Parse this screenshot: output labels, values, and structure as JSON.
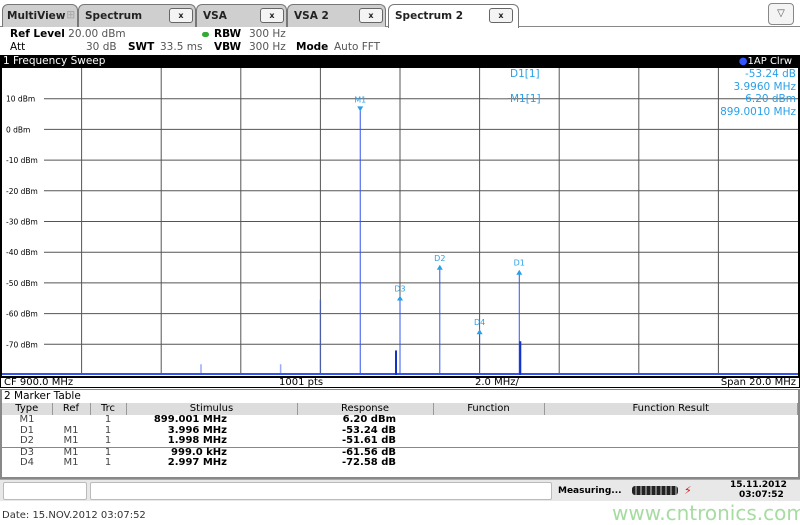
{
  "tabs": [
    {
      "label": "MultiView"
    },
    {
      "label": "Spectrum",
      "close": "x"
    },
    {
      "label": "VSA",
      "close": "x"
    },
    {
      "label": "VSA 2",
      "close": "x"
    },
    {
      "label": "Spectrum 2",
      "close": "x",
      "active": true
    }
  ],
  "dropdown_icon": "▽",
  "settings": {
    "ref_level_label": "Ref Level",
    "ref_level": "20.00 dBm",
    "att_label": "Att",
    "att": "30 dB",
    "swt_label": "SWT",
    "swt": "33.5 ms",
    "rbw_label": "RBW",
    "rbw": "300 Hz",
    "vbw_label": "VBW",
    "vbw": "300 Hz",
    "mode_label": "Mode",
    "mode": "Auto FFT",
    "rbw_indicator_color": "#3a3"
  },
  "window": {
    "title": "1 Frequency Sweep",
    "trace_label": "1AP Clrw"
  },
  "marker_readout": [
    {
      "name": "D1[1]",
      "level": "-53.24 dB",
      "freq": "3.9960 MHz"
    },
    {
      "name": "M1[1]",
      "level": "6.20 dBm",
      "freq": "899.0010 MHz"
    }
  ],
  "chart_data": {
    "type": "line",
    "ylabel_unit": "dBm",
    "ylim": [
      -80,
      20
    ],
    "xlim_mhz": [
      890,
      910
    ],
    "grid": true,
    "y_ticks": [
      "10 dBm",
      "0 dBm",
      "-10 dBm",
      "-20 dBm",
      "-30 dBm",
      "-40 dBm",
      "-50 dBm",
      "-60 dBm",
      "-70 dBm"
    ],
    "y_tick_values": [
      10,
      0,
      -10,
      -20,
      -30,
      -40,
      -50,
      -60,
      -70
    ],
    "trace_color": "#3355ee",
    "spikes": [
      {
        "f": 895.0,
        "level": -76.5,
        "faint": true
      },
      {
        "f": 897.0,
        "level": -76.5,
        "faint": true
      },
      {
        "f": 898.0,
        "level": -55.5,
        "faint": true
      },
      {
        "f": 899.001,
        "level": 6.2
      },
      {
        "f": 900.0,
        "level": -55.4
      },
      {
        "f": 901.0,
        "level": -45.4
      },
      {
        "f": 902.0,
        "level": -66.4
      },
      {
        "f": 902.997,
        "level": -47.0
      }
    ],
    "markers": [
      {
        "label": "M1",
        "f": 899.001,
        "level": 6.2,
        "type": "down"
      },
      {
        "label": "D3",
        "f": 900.0,
        "level": -55.4,
        "type": "up"
      },
      {
        "label": "D2",
        "f": 901.0,
        "level": -45.4,
        "type": "up"
      },
      {
        "label": "D4",
        "f": 902.0,
        "level": -66.4,
        "type": "up"
      },
      {
        "label": "D1",
        "f": 902.997,
        "level": -47.0,
        "type": "up"
      }
    ]
  },
  "footer": {
    "cf": "CF 900.0 MHz",
    "pts": "1001 pts",
    "div": "2.0 MHz/",
    "span": "Span 20.0 MHz"
  },
  "marker_table": {
    "title": "2 Marker Table",
    "headers": [
      "Type",
      "Ref",
      "Trc",
      "Stimulus",
      "Response",
      "Function",
      "Function Result"
    ],
    "rows": [
      [
        "M1",
        "",
        "1",
        "899.001 MHz",
        "6.20 dBm",
        "",
        ""
      ],
      [
        "D1",
        "M1",
        "1",
        "3.996 MHz",
        "-53.24 dB",
        "",
        ""
      ],
      [
        "D2",
        "M1",
        "1",
        "1.998 MHz",
        "-51.61 dB",
        "",
        ""
      ],
      [
        "D3",
        "M1",
        "1",
        "999.0 kHz",
        "-61.56 dB",
        "",
        ""
      ],
      [
        "D4",
        "M1",
        "1",
        "2.997 MHz",
        "-72.58 dB",
        "",
        ""
      ]
    ]
  },
  "status": {
    "measuring": "Measuring...",
    "date": "15.11.2012",
    "time": "03:07:52"
  },
  "date_line": "Date: 15.NOV.2012  03:07:52",
  "watermark": "www.cntronics.com"
}
